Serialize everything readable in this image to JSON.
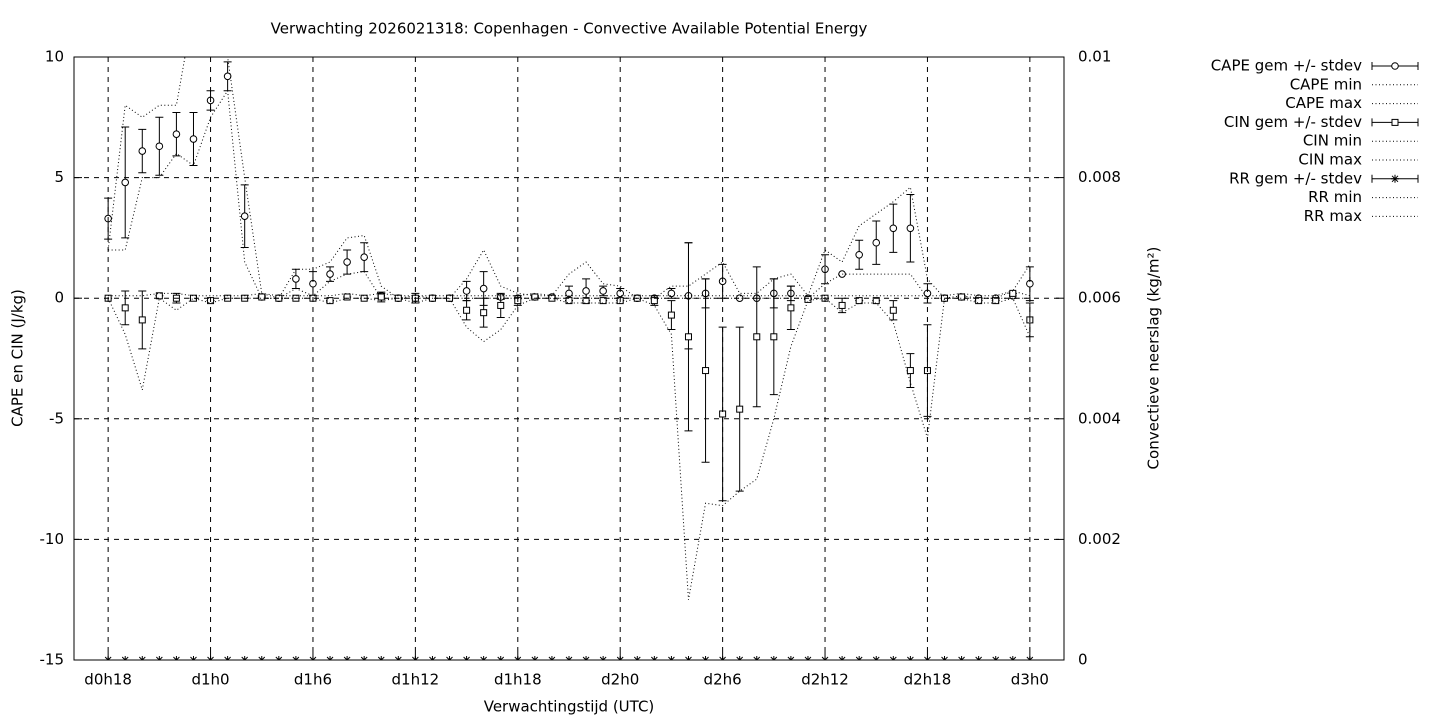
{
  "chart_data": {
    "type": "errorbar",
    "title": "Verwachting 2026021318: Copenhagen - Convective Available Potential Energy",
    "xlabel": "Verwachtingstijd (UTC)",
    "ylabel": "CAPE en CIN (J/kg)",
    "y2label": "Convectieve neerslag (kg/m²)",
    "x": [
      18,
      19,
      20,
      21,
      22,
      23,
      24,
      25,
      26,
      27,
      28,
      29,
      30,
      31,
      32,
      33,
      34,
      35,
      36,
      37,
      38,
      39,
      40,
      41,
      42,
      43,
      44,
      45,
      46,
      47,
      48,
      49,
      50,
      51,
      52,
      53,
      54,
      55,
      56,
      57,
      58,
      59,
      60,
      61,
      62,
      63,
      64,
      65,
      66,
      67,
      68,
      69,
      70,
      71,
      72
    ],
    "xlim": [
      16,
      74
    ],
    "xticks": [
      {
        "value": 18,
        "label": "d0h18"
      },
      {
        "value": 24,
        "label": "d1h0"
      },
      {
        "value": 30,
        "label": "d1h6"
      },
      {
        "value": 36,
        "label": "d1h12"
      },
      {
        "value": 42,
        "label": "d1h18"
      },
      {
        "value": 48,
        "label": "d2h0"
      },
      {
        "value": 54,
        "label": "d2h6"
      },
      {
        "value": 60,
        "label": "d2h12"
      },
      {
        "value": 66,
        "label": "d2h18"
      },
      {
        "value": 72,
        "label": "d3h0"
      }
    ],
    "ylim": [
      -15,
      10
    ],
    "yticks": [
      -15,
      -10,
      -5,
      0,
      5,
      10
    ],
    "y2lim": [
      0,
      0.01
    ],
    "y2ticks": [
      0,
      0.002,
      0.004,
      0.006,
      0.008,
      0.01
    ],
    "grid": true,
    "legend": "outside right top",
    "series": [
      {
        "name": "CAPE gem +/- stdev",
        "color": "#000000",
        "marker": "circle",
        "values": [
          3.3,
          4.8,
          6.1,
          6.3,
          6.8,
          6.6,
          8.2,
          9.2,
          3.4,
          0.05,
          0,
          0.8,
          0.6,
          1.0,
          1.5,
          1.7,
          0.1,
          0,
          0,
          0,
          0,
          0.3,
          0.4,
          0.05,
          0,
          0.05,
          0.05,
          0.2,
          0.3,
          0.3,
          0.2,
          0,
          0,
          0.2,
          0.1,
          0.2,
          0.7,
          0,
          0,
          0.2,
          0.2,
          0,
          1.2,
          1.0,
          1.8,
          2.3,
          2.9,
          2.9,
          0.2,
          0,
          0.05,
          0,
          0,
          0.1,
          0.6
        ],
        "errors": [
          0.85,
          2.3,
          0.9,
          1.2,
          0.9,
          1.1,
          0.4,
          0.6,
          1.3,
          0.05,
          0,
          0.4,
          0.5,
          0.3,
          0.5,
          0.6,
          0.1,
          0,
          0,
          0,
          0,
          0.4,
          0.7,
          0.1,
          0,
          0.05,
          0.05,
          0.3,
          0.5,
          0.2,
          0.2,
          0,
          0,
          0.2,
          2.2,
          0.6,
          0.7,
          0,
          0,
          0.6,
          0.3,
          0,
          0.6,
          0,
          0.6,
          0.9,
          1.0,
          1.4,
          0.4,
          0,
          0.05,
          0,
          0,
          0.1,
          0.7
        ]
      },
      {
        "name": "CAPE min",
        "color": "#000000",
        "values": [
          2,
          2,
          5,
          5,
          6,
          5.5,
          7.5,
          8.6,
          1.5,
          0,
          0,
          0.4,
          0.1,
          0.7,
          1,
          1.1,
          0,
          0,
          0,
          0,
          0,
          0,
          0,
          0,
          0,
          0,
          0,
          0,
          0,
          0,
          0,
          0,
          0,
          0,
          0,
          0,
          0,
          0,
          0,
          0,
          0,
          0,
          0.6,
          1,
          1,
          1,
          1,
          1,
          0,
          0,
          0,
          0,
          0,
          0,
          0
        ]
      },
      {
        "name": "CAPE max",
        "color": "#000000",
        "values": [
          2,
          8,
          7.5,
          8,
          8,
          12,
          11,
          10,
          5,
          0.2,
          0,
          1.2,
          1.2,
          1.5,
          2.5,
          2.6,
          0.5,
          0,
          0.1,
          0,
          0,
          0.8,
          2,
          0.5,
          0.2,
          0.1,
          0.1,
          1,
          1.5,
          0.6,
          0.5,
          0,
          0,
          0.5,
          0.5,
          1,
          1.5,
          0.2,
          0.2,
          0.8,
          1,
          0.1,
          2,
          1.5,
          3,
          3.5,
          4,
          4.6,
          0.8,
          0,
          0.1,
          0,
          0,
          0.3,
          1.4
        ]
      },
      {
        "name": "CIN gem +/- stdev",
        "color": "#000000",
        "marker": "square",
        "values": [
          0,
          -0.4,
          -0.9,
          0.1,
          0,
          0,
          -0.1,
          0,
          0,
          0.05,
          0,
          0,
          0,
          -0.1,
          0.05,
          0,
          0.05,
          0,
          0,
          0,
          0,
          -0.5,
          -0.6,
          -0.3,
          -0.1,
          0.05,
          0,
          -0.1,
          -0.1,
          -0.1,
          -0.1,
          0,
          -0.1,
          -0.7,
          -1.6,
          -3,
          -4.8,
          -4.6,
          -1.6,
          -1.6,
          -0.4,
          -0.05,
          0,
          -0.3,
          -0.1,
          -0.1,
          -0.5,
          -3,
          -3,
          0,
          0.05,
          -0.1,
          -0.1,
          0.2,
          -0.9
        ],
        "errors": [
          0,
          0.7,
          1.2,
          0,
          0.2,
          0,
          0,
          0,
          0,
          0,
          0,
          0,
          0,
          0,
          0,
          0,
          0.2,
          0,
          0.2,
          0,
          0,
          0.4,
          0.6,
          0.5,
          0.2,
          0,
          0,
          0,
          0,
          0,
          0,
          0,
          0.2,
          0.6,
          3.9,
          3.8,
          3.6,
          3.4,
          2.9,
          2.4,
          0.9,
          0,
          0,
          0.3,
          0,
          0,
          0.4,
          0.7,
          1.9,
          0,
          0,
          0,
          0,
          0,
          0.7
        ]
      },
      {
        "name": "CIN min",
        "color": "#000000",
        "values": [
          0,
          -1.5,
          -3.8,
          0,
          -0.5,
          0,
          -0.2,
          0,
          0,
          0,
          0,
          0,
          0,
          -0.2,
          0,
          0,
          -0.1,
          0,
          -0.2,
          0,
          0,
          -1.2,
          -1.8,
          -1.3,
          -0.3,
          0,
          0,
          -0.2,
          -0.2,
          -0.2,
          -0.2,
          0,
          -0.3,
          -1.5,
          -12.5,
          -8.5,
          -8.6,
          -8,
          -7.5,
          -5,
          -2,
          -0.1,
          0,
          -0.6,
          -0.2,
          -0.2,
          -1,
          -3.5,
          -5.8,
          0,
          0,
          -0.2,
          -0.2,
          0,
          -1.6
        ]
      },
      {
        "name": "CIN max",
        "color": "#000000",
        "values": [
          0.1,
          0.1,
          0.1,
          0.2,
          0.2,
          0.1,
          0.1,
          0.1,
          0.1,
          0.2,
          0.1,
          0.1,
          0.1,
          0.1,
          0.2,
          0.1,
          0.2,
          0.1,
          0.1,
          0.1,
          0.1,
          0.1,
          0.1,
          0.1,
          0.1,
          0.2,
          0.1,
          0.1,
          0.1,
          0.1,
          0.1,
          0.1,
          0.1,
          0.1,
          0.1,
          0.1,
          0.1,
          0.1,
          0.1,
          0.1,
          0.1,
          0.1,
          0.1,
          0.1,
          0.1,
          0.1,
          0.1,
          0.1,
          0.1,
          0.1,
          0.2,
          0.1,
          0.1,
          0.3,
          0.1
        ]
      },
      {
        "name": "RR gem +/- stdev",
        "color": "#000000",
        "marker": "star",
        "axis": "y2",
        "values": [
          0,
          0,
          0,
          0,
          0,
          0,
          0,
          0,
          0,
          0,
          0,
          0,
          0,
          0,
          0,
          0,
          0,
          0,
          0,
          0,
          0,
          0,
          0,
          0,
          0,
          0,
          0,
          0,
          0,
          0,
          0,
          0,
          0,
          0,
          0,
          0,
          0,
          0,
          0,
          0,
          0,
          0,
          0,
          0,
          0,
          0,
          0,
          0,
          0,
          0,
          0,
          0,
          0,
          0,
          0
        ],
        "errors": [
          0,
          0,
          0,
          0,
          0,
          0,
          0,
          0,
          0,
          0,
          0,
          0,
          0,
          0,
          0,
          0,
          0,
          0,
          0,
          0,
          0,
          0,
          0,
          0,
          0,
          0,
          0,
          0,
          0,
          0,
          0,
          0,
          0,
          0,
          0,
          0,
          0,
          0,
          0,
          0,
          0,
          0,
          0,
          0,
          0,
          0,
          0,
          0,
          0,
          0,
          0,
          0,
          0,
          0,
          0
        ]
      },
      {
        "name": "RR min",
        "color": "#000000",
        "axis": "y2",
        "values": [
          0,
          0,
          0,
          0,
          0,
          0,
          0,
          0,
          0,
          0,
          0,
          0,
          0,
          0,
          0,
          0,
          0,
          0,
          0,
          0,
          0,
          0,
          0,
          0,
          0,
          0,
          0,
          0,
          0,
          0,
          0,
          0,
          0,
          0,
          0,
          0,
          0,
          0,
          0,
          0,
          0,
          0,
          0,
          0,
          0,
          0,
          0,
          0,
          0,
          0,
          0,
          0,
          0,
          0,
          0
        ]
      },
      {
        "name": "RR max",
        "color": "#000000",
        "axis": "y2",
        "values": [
          0,
          0,
          0,
          0,
          0,
          0,
          0,
          0,
          0,
          0,
          0,
          0,
          0,
          0,
          0,
          0,
          0,
          0,
          0,
          0,
          0,
          0,
          0,
          0,
          0,
          0,
          0,
          0,
          0,
          0,
          0,
          0,
          0,
          0,
          0,
          0,
          0,
          0,
          0,
          0,
          0,
          0,
          0,
          0,
          0,
          0,
          0,
          0,
          0,
          0,
          0,
          0,
          0,
          0,
          0
        ]
      }
    ]
  }
}
